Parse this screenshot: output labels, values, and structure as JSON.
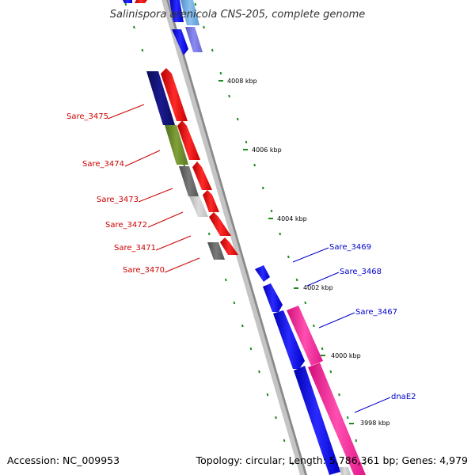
{
  "map": {
    "title": "Salinispora arenicola CNS-205, complete genome",
    "accession": "Accession: NC_009953",
    "summary": "Topology: circular; Length: 5,786,361 bp; Genes: 4,979"
  },
  "ticks": [
    "4008 kbp",
    "4006 kbp",
    "4004 kbp",
    "4002 kbp",
    "4000 kbp",
    "3998 kbp"
  ],
  "genes_left": [
    "Sare_3475",
    "Sare_3474",
    "Sare_3473",
    "Sare_3472",
    "Sare_3471",
    "Sare_3470"
  ],
  "genes_right": [
    "Sare_3469",
    "Sare_3468",
    "Sare_3467",
    "dnaE2"
  ],
  "colors": {
    "forward_label": "#0000cc",
    "reverse_label": "#cc0000",
    "tick": "#1c8a1c",
    "backbone": "#8a8a8a"
  }
}
